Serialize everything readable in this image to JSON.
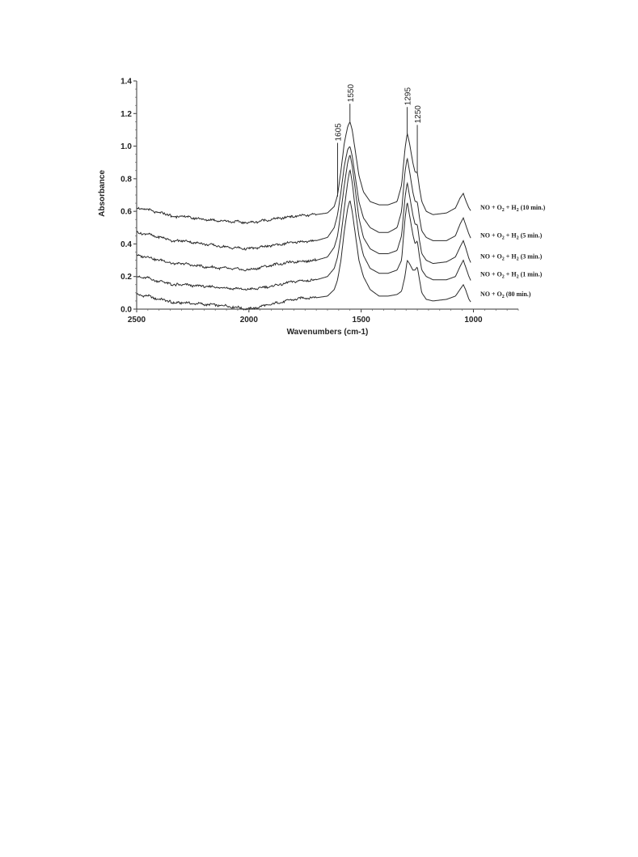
{
  "chart_data": {
    "type": "line",
    "xlabel": "Wavenumbers (cm-1)",
    "ylabel": "Absorbance",
    "xlim": [
      2500,
      800
    ],
    "ylim": [
      0.0,
      1.4
    ],
    "x_reversed": true,
    "x_ticks": [
      "2500",
      "2000",
      "1500",
      "1000"
    ],
    "y_ticks": [
      "0.0",
      "0.2",
      "0.4",
      "0.6",
      "0.8",
      "1.0",
      "1.2",
      "1.4"
    ],
    "grid": false,
    "peak_labels": [
      {
        "text": "1605",
        "x": 1605,
        "y": 1.02
      },
      {
        "text": "1550",
        "x": 1550,
        "y": 1.26
      },
      {
        "text": "1295",
        "x": 1295,
        "y": 1.24
      },
      {
        "text": "1250",
        "x": 1250,
        "y": 1.13
      }
    ],
    "series": [
      {
        "name": "NO + O₂ (80 min.)",
        "legend": {
          "pre": "NO + O",
          "sub": "2",
          "post": " (80 min.)"
        },
        "points": [
          [
            2500,
            0.09
          ],
          [
            2450,
            0.08
          ],
          [
            2400,
            0.06
          ],
          [
            2350,
            0.05
          ],
          [
            2300,
            0.04
          ],
          [
            2200,
            0.03
          ],
          [
            2100,
            0.02
          ],
          [
            2000,
            0.0
          ],
          [
            1900,
            0.03
          ],
          [
            1800,
            0.06
          ],
          [
            1750,
            0.07
          ],
          [
            1700,
            0.07
          ],
          [
            1650,
            0.08
          ],
          [
            1620,
            0.12
          ],
          [
            1605,
            0.18
          ],
          [
            1590,
            0.3
          ],
          [
            1575,
            0.48
          ],
          [
            1560,
            0.62
          ],
          [
            1550,
            0.67
          ],
          [
            1540,
            0.6
          ],
          [
            1525,
            0.45
          ],
          [
            1510,
            0.3
          ],
          [
            1490,
            0.2
          ],
          [
            1460,
            0.12
          ],
          [
            1420,
            0.08
          ],
          [
            1380,
            0.08
          ],
          [
            1340,
            0.09
          ],
          [
            1320,
            0.11
          ],
          [
            1305,
            0.2
          ],
          [
            1295,
            0.3
          ],
          [
            1285,
            0.28
          ],
          [
            1270,
            0.24
          ],
          [
            1260,
            0.24
          ],
          [
            1250,
            0.26
          ],
          [
            1240,
            0.18
          ],
          [
            1230,
            0.1
          ],
          [
            1210,
            0.06
          ],
          [
            1180,
            0.05
          ],
          [
            1120,
            0.06
          ],
          [
            1080,
            0.08
          ],
          [
            1060,
            0.12
          ],
          [
            1045,
            0.15
          ],
          [
            1035,
            0.12
          ],
          [
            1020,
            0.06
          ],
          [
            1010,
            0.04
          ]
        ]
      },
      {
        "name": "NO + O₂ + H₂ (1 min.)",
        "legend": {
          "pre": "NO + O",
          "sub": "2",
          "mid": " + H",
          "sub2": "2",
          "post": " (1 min.)"
        },
        "points": [
          [
            2500,
            0.2
          ],
          [
            2450,
            0.19
          ],
          [
            2400,
            0.17
          ],
          [
            2350,
            0.16
          ],
          [
            2300,
            0.15
          ],
          [
            2200,
            0.14
          ],
          [
            2100,
            0.13
          ],
          [
            2000,
            0.12
          ],
          [
            1900,
            0.14
          ],
          [
            1800,
            0.17
          ],
          [
            1700,
            0.18
          ],
          [
            1650,
            0.2
          ],
          [
            1620,
            0.25
          ],
          [
            1605,
            0.32
          ],
          [
            1590,
            0.45
          ],
          [
            1575,
            0.62
          ],
          [
            1560,
            0.78
          ],
          [
            1550,
            0.86
          ],
          [
            1540,
            0.78
          ],
          [
            1525,
            0.6
          ],
          [
            1510,
            0.45
          ],
          [
            1490,
            0.33
          ],
          [
            1460,
            0.25
          ],
          [
            1420,
            0.22
          ],
          [
            1380,
            0.22
          ],
          [
            1340,
            0.24
          ],
          [
            1320,
            0.3
          ],
          [
            1305,
            0.55
          ],
          [
            1295,
            0.66
          ],
          [
            1285,
            0.58
          ],
          [
            1270,
            0.46
          ],
          [
            1260,
            0.4
          ],
          [
            1250,
            0.42
          ],
          [
            1240,
            0.32
          ],
          [
            1230,
            0.24
          ],
          [
            1210,
            0.2
          ],
          [
            1180,
            0.18
          ],
          [
            1120,
            0.18
          ],
          [
            1080,
            0.2
          ],
          [
            1060,
            0.26
          ],
          [
            1045,
            0.3
          ],
          [
            1035,
            0.26
          ],
          [
            1020,
            0.2
          ],
          [
            1010,
            0.17
          ]
        ]
      },
      {
        "name": "NO + O₂ + H₂ (3 min.)",
        "legend": {
          "pre": "NO + O",
          "sub": "2",
          "mid": " + H",
          "sub2": "2",
          "post": " (3 min.)"
        },
        "points": [
          [
            2500,
            0.33
          ],
          [
            2450,
            0.32
          ],
          [
            2400,
            0.3
          ],
          [
            2350,
            0.29
          ],
          [
            2300,
            0.28
          ],
          [
            2200,
            0.26
          ],
          [
            2100,
            0.25
          ],
          [
            2000,
            0.24
          ],
          [
            1900,
            0.27
          ],
          [
            1800,
            0.29
          ],
          [
            1700,
            0.3
          ],
          [
            1650,
            0.32
          ],
          [
            1620,
            0.38
          ],
          [
            1605,
            0.45
          ],
          [
            1590,
            0.6
          ],
          [
            1575,
            0.76
          ],
          [
            1560,
            0.9
          ],
          [
            1550,
            0.95
          ],
          [
            1540,
            0.88
          ],
          [
            1525,
            0.72
          ],
          [
            1510,
            0.56
          ],
          [
            1490,
            0.44
          ],
          [
            1460,
            0.37
          ],
          [
            1420,
            0.34
          ],
          [
            1380,
            0.34
          ],
          [
            1340,
            0.36
          ],
          [
            1320,
            0.45
          ],
          [
            1305,
            0.68
          ],
          [
            1295,
            0.78
          ],
          [
            1285,
            0.7
          ],
          [
            1270,
            0.58
          ],
          [
            1260,
            0.52
          ],
          [
            1250,
            0.52
          ],
          [
            1240,
            0.42
          ],
          [
            1230,
            0.34
          ],
          [
            1210,
            0.3
          ],
          [
            1180,
            0.28
          ],
          [
            1120,
            0.29
          ],
          [
            1080,
            0.32
          ],
          [
            1060,
            0.38
          ],
          [
            1045,
            0.42
          ],
          [
            1035,
            0.38
          ],
          [
            1020,
            0.31
          ],
          [
            1010,
            0.28
          ]
        ]
      },
      {
        "name": "NO + O₂ + H₂ (5 min.)",
        "legend": {
          "pre": "NO + O",
          "sub": "2",
          "mid": " + H",
          "sub2": "2",
          "post": " (5 min.)"
        },
        "points": [
          [
            2500,
            0.47
          ],
          [
            2450,
            0.46
          ],
          [
            2400,
            0.44
          ],
          [
            2350,
            0.43
          ],
          [
            2300,
            0.42
          ],
          [
            2200,
            0.4
          ],
          [
            2100,
            0.38
          ],
          [
            2000,
            0.37
          ],
          [
            1900,
            0.39
          ],
          [
            1800,
            0.41
          ],
          [
            1700,
            0.42
          ],
          [
            1650,
            0.44
          ],
          [
            1620,
            0.5
          ],
          [
            1605,
            0.58
          ],
          [
            1590,
            0.72
          ],
          [
            1575,
            0.88
          ],
          [
            1560,
            0.98
          ],
          [
            1550,
            1.0
          ],
          [
            1540,
            0.94
          ],
          [
            1525,
            0.8
          ],
          [
            1510,
            0.66
          ],
          [
            1490,
            0.56
          ],
          [
            1460,
            0.5
          ],
          [
            1420,
            0.47
          ],
          [
            1380,
            0.47
          ],
          [
            1340,
            0.5
          ],
          [
            1320,
            0.6
          ],
          [
            1305,
            0.84
          ],
          [
            1295,
            0.93
          ],
          [
            1285,
            0.85
          ],
          [
            1270,
            0.72
          ],
          [
            1260,
            0.66
          ],
          [
            1250,
            0.66
          ],
          [
            1240,
            0.56
          ],
          [
            1230,
            0.48
          ],
          [
            1210,
            0.44
          ],
          [
            1180,
            0.42
          ],
          [
            1120,
            0.42
          ],
          [
            1080,
            0.45
          ],
          [
            1060,
            0.52
          ],
          [
            1045,
            0.56
          ],
          [
            1035,
            0.52
          ],
          [
            1020,
            0.46
          ],
          [
            1010,
            0.43
          ]
        ]
      },
      {
        "name": "NO + O₂ + H₂ (10 min.)",
        "legend": {
          "pre": "NO + O",
          "sub": "2",
          "mid": " + H",
          "sub2": "2",
          "post": " (10 min.)"
        },
        "points": [
          [
            2500,
            0.62
          ],
          [
            2450,
            0.61
          ],
          [
            2400,
            0.59
          ],
          [
            2350,
            0.58
          ],
          [
            2300,
            0.57
          ],
          [
            2200,
            0.55
          ],
          [
            2100,
            0.54
          ],
          [
            2000,
            0.53
          ],
          [
            1900,
            0.55
          ],
          [
            1800,
            0.57
          ],
          [
            1700,
            0.58
          ],
          [
            1650,
            0.59
          ],
          [
            1620,
            0.63
          ],
          [
            1605,
            0.7
          ],
          [
            1590,
            0.85
          ],
          [
            1575,
            1.02
          ],
          [
            1560,
            1.12
          ],
          [
            1550,
            1.15
          ],
          [
            1540,
            1.1
          ],
          [
            1525,
            0.96
          ],
          [
            1510,
            0.82
          ],
          [
            1490,
            0.72
          ],
          [
            1460,
            0.66
          ],
          [
            1420,
            0.64
          ],
          [
            1380,
            0.64
          ],
          [
            1340,
            0.66
          ],
          [
            1320,
            0.76
          ],
          [
            1305,
            0.98
          ],
          [
            1295,
            1.08
          ],
          [
            1285,
            1.02
          ],
          [
            1270,
            0.9
          ],
          [
            1260,
            0.84
          ],
          [
            1250,
            0.84
          ],
          [
            1240,
            0.74
          ],
          [
            1230,
            0.66
          ],
          [
            1210,
            0.6
          ],
          [
            1180,
            0.58
          ],
          [
            1120,
            0.59
          ],
          [
            1080,
            0.62
          ],
          [
            1060,
            0.68
          ],
          [
            1045,
            0.71
          ],
          [
            1035,
            0.67
          ],
          [
            1020,
            0.62
          ],
          [
            1010,
            0.6
          ]
        ]
      }
    ]
  }
}
